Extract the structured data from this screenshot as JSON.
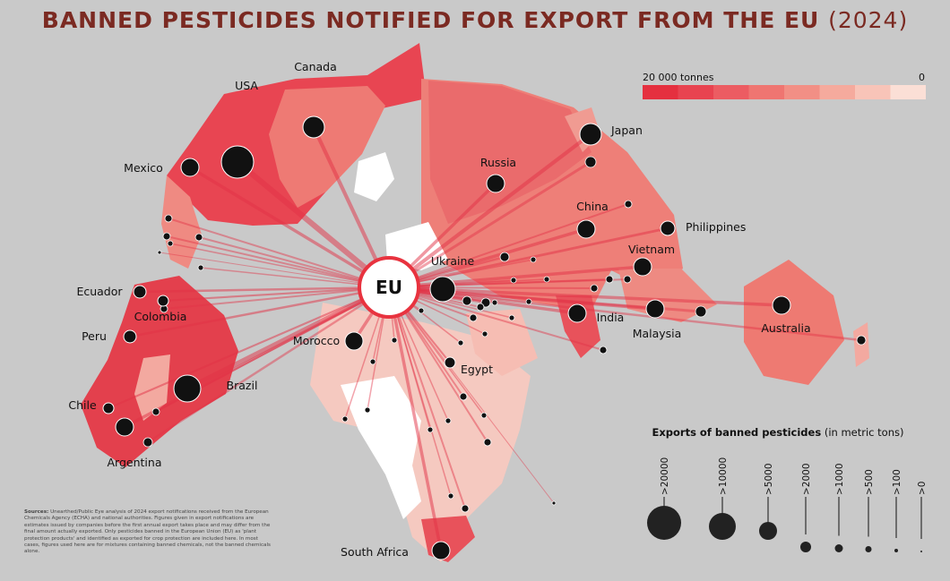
{
  "header": {
    "title": "BANNED PESTICIDES NOTIFIED FOR EXPORT FROM THE EU",
    "year": "(2024)"
  },
  "map": {
    "center_label": "EU",
    "countries": [
      "Canada",
      "USA",
      "Mexico",
      "Japan",
      "Russia",
      "China",
      "Philippines",
      "Vietnam",
      "Ukraine",
      "Ecuador",
      "Colombia",
      "Peru",
      "Morocco",
      "India",
      "Malaysia",
      "Australia",
      "Egypt",
      "Brazil",
      "Chile",
      "Argentina",
      "South Africa"
    ]
  },
  "color_legend": {
    "max_label": "20 000 tonnes",
    "min_label": "0"
  },
  "size_legend": {
    "title": "Exports of banned pesticides",
    "unit": "(in metric tons)",
    "classes": [
      ">20000",
      ">10000",
      ">5000",
      ">2000",
      ">1000",
      ">500",
      ">100",
      ">0"
    ]
  },
  "sources": {
    "label": "Sources:",
    "text": "Unearthed/Public Eye analysis of 2024 export notifications received from the European Chemicals Agency (ECHA) and national authorities. Figures given in export notifications are estimates issued by companies before the first annual export takes place and may differ from the final amount actually exported. Only pesticides banned in the European Union (EU) as 'plant protection products' and identified as exported for crop protection are included here. In most cases, figures used here are for mixtures containing banned chemicals, not the banned chemicals alone."
  }
}
